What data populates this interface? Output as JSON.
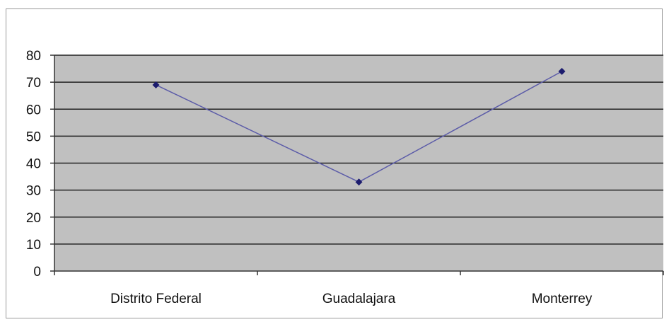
{
  "chart_data": {
    "type": "line",
    "title": "",
    "xlabel": "",
    "ylabel": "",
    "categories": [
      "Distrito Federal",
      "Guadalajara",
      "Monterrey"
    ],
    "series": [
      {
        "values": [
          69,
          33,
          74
        ]
      }
    ],
    "ylim": [
      0,
      80
    ],
    "yticks": [
      0,
      10,
      20,
      30,
      40,
      50,
      60,
      70,
      80
    ],
    "grid": true,
    "legend": "none",
    "colors": {
      "plot_background": "#c0c0c0",
      "gridline": "#222222",
      "line": "#5b5ba8",
      "marker": "#1c1c6e"
    }
  }
}
